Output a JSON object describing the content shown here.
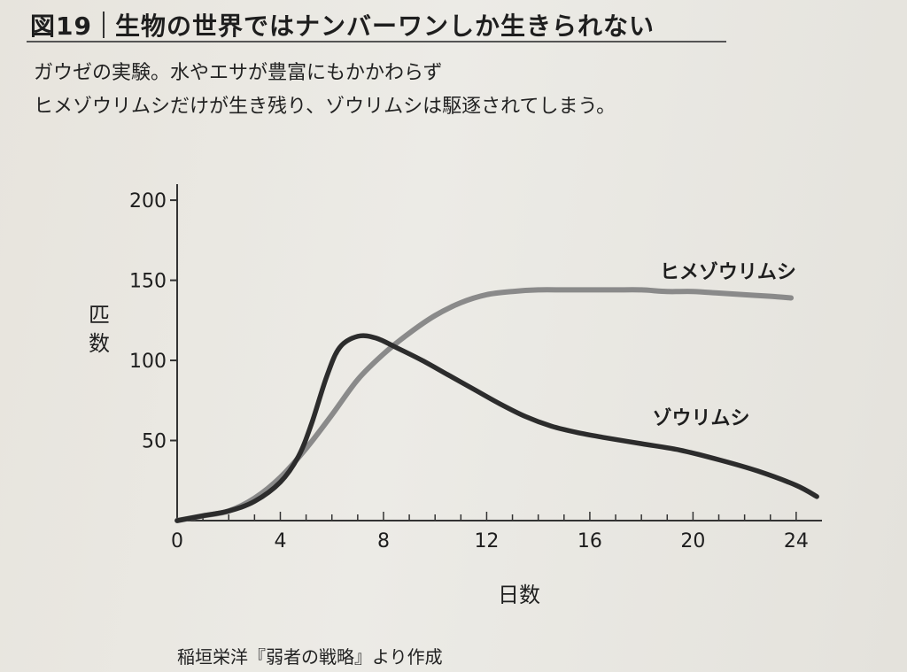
{
  "figure": {
    "number": "図19",
    "title": "生物の世界ではナンバーワンしか生きられない",
    "subtitle_line1": "ガウゼの実験。水やエサが豊富にもかかわらず",
    "subtitle_line2": "ヒメゾウリムシだけが生き残り、ゾウリムシは駆逐されてしまう。",
    "source": "稲垣栄洋『弱者の戦略』より作成"
  },
  "chart_data": {
    "type": "line",
    "xlabel": "日数",
    "ylabel": "匹数",
    "xlim": [
      0,
      25
    ],
    "ylim": [
      0,
      210
    ],
    "x_ticks": [
      0,
      4,
      8,
      12,
      16,
      20,
      24
    ],
    "y_ticks": [
      50,
      100,
      150,
      200
    ],
    "x_minor_tick_step": 1,
    "grid": false,
    "series": [
      {
        "name": "ヒメゾウリムシ",
        "color": "#8a8a8a",
        "points": [
          [
            0,
            0
          ],
          [
            1,
            3
          ],
          [
            2,
            6
          ],
          [
            3,
            14
          ],
          [
            4,
            27
          ],
          [
            5,
            45
          ],
          [
            6,
            66
          ],
          [
            7,
            88
          ],
          [
            8,
            104
          ],
          [
            9,
            117
          ],
          [
            10,
            128
          ],
          [
            11,
            136
          ],
          [
            12,
            141
          ],
          [
            13,
            143
          ],
          [
            14,
            144
          ],
          [
            15,
            144
          ],
          [
            16,
            144
          ],
          [
            17,
            144
          ],
          [
            18,
            144
          ],
          [
            19,
            143
          ],
          [
            20,
            143
          ],
          [
            21,
            142
          ],
          [
            22,
            141
          ],
          [
            23,
            140
          ],
          [
            23.8,
            139
          ]
        ]
      },
      {
        "name": "ゾウリムシ",
        "color": "#2c2c2c",
        "points": [
          [
            0,
            0
          ],
          [
            1,
            3
          ],
          [
            2,
            6
          ],
          [
            3,
            12
          ],
          [
            4,
            24
          ],
          [
            4.7,
            40
          ],
          [
            5.2,
            60
          ],
          [
            5.8,
            90
          ],
          [
            6.3,
            108
          ],
          [
            7,
            115
          ],
          [
            7.7,
            114
          ],
          [
            8.5,
            108
          ],
          [
            9.5,
            100
          ],
          [
            10.5,
            91
          ],
          [
            11.5,
            82
          ],
          [
            12.5,
            73
          ],
          [
            13.5,
            65
          ],
          [
            14.5,
            59
          ],
          [
            15.5,
            55
          ],
          [
            16.5,
            52
          ],
          [
            18,
            48
          ],
          [
            19.5,
            44
          ],
          [
            21,
            38
          ],
          [
            22.5,
            31
          ],
          [
            24,
            22
          ],
          [
            24.8,
            15
          ]
        ]
      }
    ]
  }
}
